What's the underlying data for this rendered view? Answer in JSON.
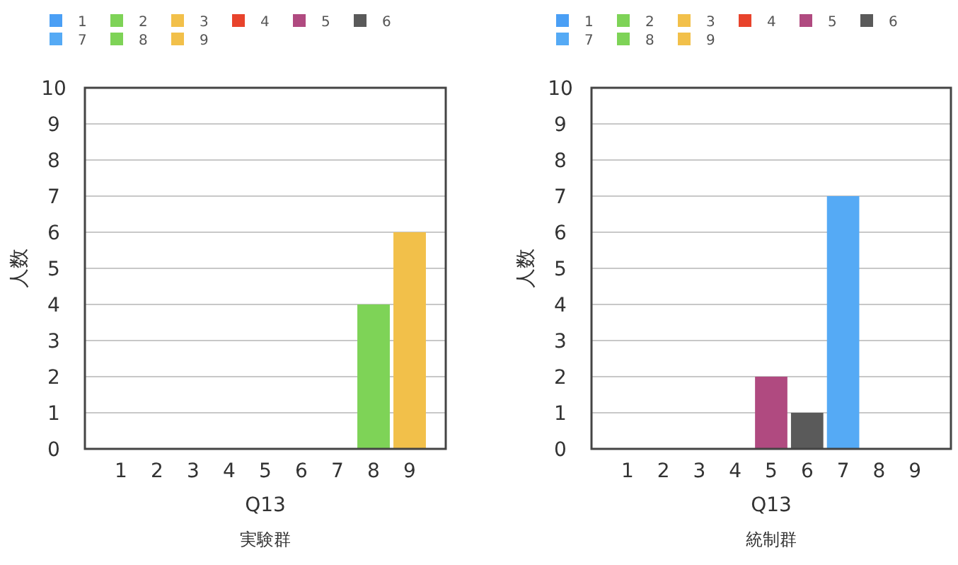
{
  "chart_data": [
    {
      "type": "bar",
      "title": "実験群",
      "xlabel": "Q13",
      "ylabel": "人数",
      "categories": [
        "1",
        "2",
        "3",
        "4",
        "5",
        "6",
        "7",
        "8",
        "9"
      ],
      "ylim": [
        0,
        10
      ],
      "yticks": [
        0,
        1,
        2,
        3,
        4,
        5,
        6,
        7,
        8,
        9,
        10
      ],
      "grid": "y",
      "legend": "top",
      "series": [
        {
          "name": "1",
          "color": "#4a9ff5",
          "values": [
            0,
            null,
            null,
            null,
            null,
            null,
            null,
            null,
            null
          ]
        },
        {
          "name": "2",
          "color": "#7ed357",
          "values": [
            null,
            0,
            null,
            null,
            null,
            null,
            null,
            null,
            null
          ]
        },
        {
          "name": "3",
          "color": "#f2c04a",
          "values": [
            null,
            null,
            0,
            null,
            null,
            null,
            null,
            null,
            null
          ]
        },
        {
          "name": "4",
          "color": "#e8432c",
          "values": [
            null,
            null,
            null,
            0,
            null,
            null,
            null,
            null,
            null
          ]
        },
        {
          "name": "5",
          "color": "#b04a80",
          "values": [
            null,
            null,
            null,
            null,
            0,
            null,
            null,
            null,
            null
          ]
        },
        {
          "name": "6",
          "color": "#5a5a5a",
          "values": [
            null,
            null,
            null,
            null,
            null,
            0,
            null,
            null,
            null
          ]
        },
        {
          "name": "7",
          "color": "#55aaf5",
          "values": [
            null,
            null,
            null,
            null,
            null,
            null,
            0,
            null,
            null
          ]
        },
        {
          "name": "8",
          "color": "#7ed357",
          "values": [
            null,
            null,
            null,
            null,
            null,
            null,
            null,
            4,
            null
          ]
        },
        {
          "name": "9",
          "color": "#f2c04a",
          "values": [
            null,
            null,
            null,
            null,
            null,
            null,
            null,
            null,
            6
          ]
        }
      ]
    },
    {
      "type": "bar",
      "title": "統制群",
      "xlabel": "Q13",
      "ylabel": "人数",
      "categories": [
        "1",
        "2",
        "3",
        "4",
        "5",
        "6",
        "7",
        "8",
        "9"
      ],
      "ylim": [
        0,
        10
      ],
      "yticks": [
        0,
        1,
        2,
        3,
        4,
        5,
        6,
        7,
        8,
        9,
        10
      ],
      "grid": "y",
      "legend": "top",
      "series": [
        {
          "name": "1",
          "color": "#4a9ff5",
          "values": [
            0,
            null,
            null,
            null,
            null,
            null,
            null,
            null,
            null
          ]
        },
        {
          "name": "2",
          "color": "#7ed357",
          "values": [
            null,
            0,
            null,
            null,
            null,
            null,
            null,
            null,
            null
          ]
        },
        {
          "name": "3",
          "color": "#f2c04a",
          "values": [
            null,
            null,
            0,
            null,
            null,
            null,
            null,
            null,
            null
          ]
        },
        {
          "name": "4",
          "color": "#e8432c",
          "values": [
            null,
            null,
            null,
            0,
            null,
            null,
            null,
            null,
            null
          ]
        },
        {
          "name": "5",
          "color": "#b04a80",
          "values": [
            null,
            null,
            null,
            null,
            2,
            null,
            null,
            null,
            null
          ]
        },
        {
          "name": "6",
          "color": "#5a5a5a",
          "values": [
            null,
            null,
            null,
            null,
            null,
            1,
            null,
            null,
            null
          ]
        },
        {
          "name": "7",
          "color": "#55aaf5",
          "values": [
            null,
            null,
            null,
            null,
            null,
            null,
            7,
            null,
            null
          ]
        },
        {
          "name": "8",
          "color": "#7ed357",
          "values": [
            null,
            null,
            null,
            null,
            null,
            null,
            null,
            0,
            null
          ]
        },
        {
          "name": "9",
          "color": "#f2c04a",
          "values": [
            null,
            null,
            null,
            null,
            null,
            null,
            null,
            null,
            0
          ]
        }
      ]
    }
  ]
}
